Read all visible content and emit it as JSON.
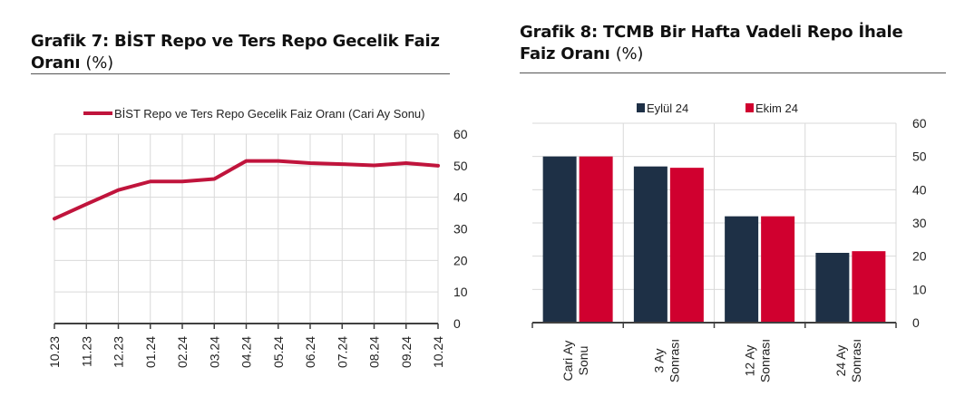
{
  "chart_data": [
    {
      "type": "line",
      "title": "Grafik 7:  BİST Repo ve Ters Repo Gecelik Faiz",
      "title_line2": "Oranı",
      "title_unit": "(%)",
      "xlabel": "",
      "ylabel": "",
      "ylim": [
        0,
        60
      ],
      "yticks": [
        0,
        10,
        20,
        30,
        40,
        50,
        60
      ],
      "y_axis_position": "right",
      "grid": true,
      "legend_position": "top",
      "x": [
        "10.23",
        "11.23",
        "12.23",
        "01.24",
        "02.24",
        "03.24",
        "04.24",
        "05.24",
        "06.24",
        "07.24",
        "08.24",
        "09.24",
        "10.24"
      ],
      "series": [
        {
          "name": "BİST Repo ve Ters Repo Gecelik Faiz Oranı (Cari Ay Sonu)",
          "color": "#c0143c",
          "values": [
            33.2,
            37.8,
            42.3,
            45.0,
            45.0,
            45.8,
            51.5,
            51.5,
            50.8,
            50.5,
            50.1,
            50.8,
            50.0
          ]
        }
      ]
    },
    {
      "type": "bar",
      "title": "Grafik 8: TCMB Bir Hafta Vadeli Repo İhale",
      "title_line2": "Faiz Oranı",
      "title_unit": "(%)",
      "xlabel": "",
      "ylabel": "",
      "ylim": [
        0,
        60
      ],
      "yticks": [
        0,
        10,
        20,
        30,
        40,
        50,
        60
      ],
      "y_axis_position": "right",
      "grid": true,
      "legend_position": "top",
      "categories": [
        {
          "line1": "Cari Ay",
          "line2": "Sonu"
        },
        {
          "line1": "3 Ay",
          "line2": "Sonrası"
        },
        {
          "line1": "12 Ay",
          "line2": "Sonrası"
        },
        {
          "line1": "24 Ay",
          "line2": "Sonrası"
        }
      ],
      "series": [
        {
          "name": "Eylül 24",
          "color": "#1e3046",
          "values": [
            50.0,
            47.0,
            32.0,
            21.0
          ]
        },
        {
          "name": "Ekim 24",
          "color": "#d0002f",
          "values": [
            50.0,
            46.6,
            32.0,
            21.5
          ]
        }
      ]
    }
  ]
}
